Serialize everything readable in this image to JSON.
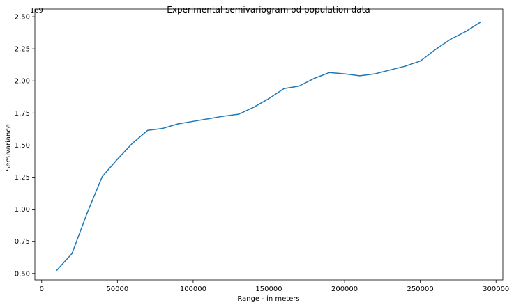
{
  "chart_data": {
    "type": "line",
    "title": "Experimental semivariogram od population data",
    "xlabel": "Range - in meters",
    "ylabel": "Semivariance",
    "y_offset_label": "1e9",
    "xlim": [
      -4500,
      304500
    ],
    "ylim": [
      0.45,
      2.56
    ],
    "x_ticks": [
      0,
      50000,
      100000,
      150000,
      200000,
      250000,
      300000
    ],
    "x_tick_labels": [
      "0",
      "50000",
      "100000",
      "150000",
      "200000",
      "250000",
      "300000"
    ],
    "y_ticks": [
      0.5,
      0.75,
      1.0,
      1.25,
      1.5,
      1.75,
      2.0,
      2.25,
      2.5
    ],
    "y_tick_labels": [
      "0.50",
      "0.75",
      "1.00",
      "1.25",
      "1.50",
      "1.75",
      "2.00",
      "2.25",
      "2.50"
    ],
    "grid": false,
    "series": [
      {
        "color": "#1f77b4",
        "x": [
          10000,
          20000,
          30000,
          40000,
          50000,
          60000,
          70000,
          80000,
          90000,
          100000,
          110000,
          120000,
          130000,
          140000,
          150000,
          160000,
          170000,
          180000,
          190000,
          200000,
          210000,
          220000,
          230000,
          240000,
          250000,
          260000,
          270000,
          280000,
          290000
        ],
        "y": [
          0.525,
          0.655,
          0.97,
          1.255,
          1.39,
          1.515,
          1.615,
          1.63,
          1.665,
          1.685,
          1.705,
          1.725,
          1.74,
          1.795,
          1.862,
          1.94,
          1.96,
          2.02,
          2.065,
          2.055,
          2.04,
          2.055,
          2.085,
          2.115,
          2.155,
          2.245,
          2.325,
          2.385,
          2.46
        ]
      }
    ]
  }
}
